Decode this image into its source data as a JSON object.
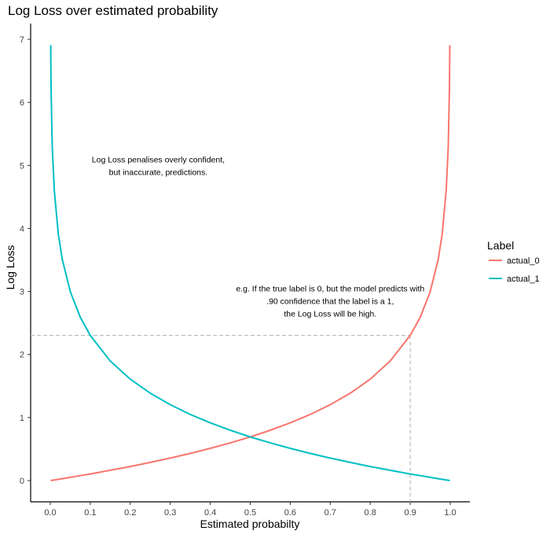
{
  "chart_data": {
    "type": "line",
    "title": "Log Loss over estimated probability",
    "xlabel": "Estimated probabilty",
    "ylabel": "Log Loss",
    "xlim": [
      -0.05,
      1.05
    ],
    "ylim": [
      -0.34,
      7.2
    ],
    "x_ticks": [
      "0.0",
      "0.1",
      "0.2",
      "0.3",
      "0.4",
      "0.5",
      "0.6",
      "0.7",
      "0.8",
      "0.9",
      "1.0"
    ],
    "y_ticks": [
      "0",
      "1",
      "2",
      "3",
      "4",
      "5",
      "6",
      "7"
    ],
    "grid": false,
    "legend": {
      "title": "Label",
      "placement": "right"
    },
    "x": [
      0.001,
      0.002,
      0.005,
      0.01,
      0.02,
      0.03,
      0.05,
      0.075,
      0.1,
      0.15,
      0.2,
      0.25,
      0.3,
      0.35,
      0.4,
      0.45,
      0.5,
      0.55,
      0.6,
      0.65,
      0.7,
      0.75,
      0.8,
      0.85,
      0.9,
      0.925,
      0.95,
      0.97,
      0.98,
      0.99,
      0.995,
      0.998,
      0.999
    ],
    "series": [
      {
        "name": "actual_0",
        "color": "#F8766D",
        "values": [
          0.001,
          0.002,
          0.005,
          0.01,
          0.02,
          0.03,
          0.051,
          0.078,
          0.105,
          0.163,
          0.223,
          0.288,
          0.357,
          0.431,
          0.511,
          0.598,
          0.693,
          0.799,
          0.916,
          1.05,
          1.204,
          1.386,
          1.609,
          1.897,
          2.303,
          2.59,
          2.996,
          3.507,
          3.912,
          4.605,
          5.298,
          6.215,
          6.908
        ]
      },
      {
        "name": "actual_1",
        "color": "#00BFC4",
        "values": [
          6.908,
          6.215,
          5.298,
          4.605,
          3.912,
          3.507,
          2.996,
          2.59,
          2.303,
          1.897,
          1.609,
          1.386,
          1.204,
          1.05,
          0.916,
          0.799,
          0.693,
          0.598,
          0.511,
          0.431,
          0.357,
          0.288,
          0.223,
          0.163,
          0.105,
          0.078,
          0.051,
          0.03,
          0.02,
          0.01,
          0.005,
          0.002,
          0.001
        ]
      }
    ],
    "reference_lines": {
      "x": 0.9,
      "y": 2.303,
      "color": "#BBBBBB",
      "style": "dashed"
    },
    "annotations": [
      {
        "lines": [
          "Log Loss penalises overly confident,",
          "but inaccurate, predictions."
        ],
        "x": 0.27,
        "y": 5.0
      },
      {
        "lines": [
          "e.g. If the true label is 0, but the model predicts with",
          ".90 confidence that the label is a 1,",
          "the Log Loss will be high."
        ],
        "x": 0.7,
        "y": 2.85
      }
    ]
  }
}
